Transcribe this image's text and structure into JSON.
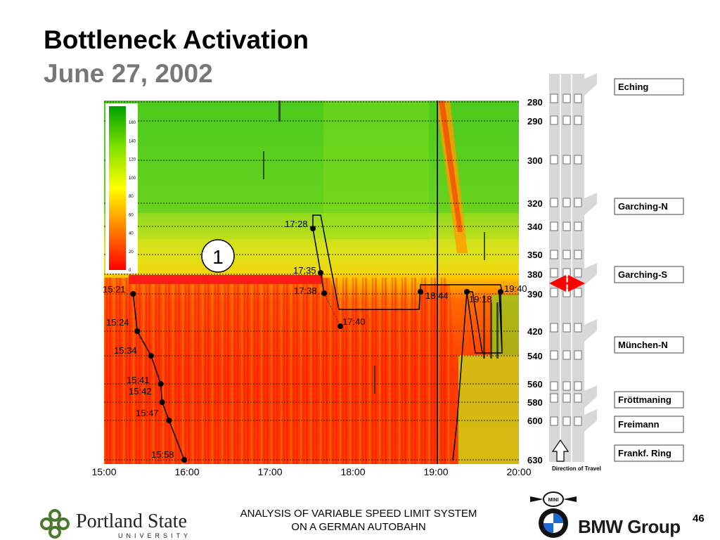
{
  "title": "Bottleneck Activation",
  "subtitle": "June 27, 2002",
  "footer": {
    "line1": "ANALYSIS OF VARIABLE SPEED LIMIT SYSTEM",
    "line2": "ON A GERMAN AUTOBAHN",
    "page_number": "46",
    "psu_name": "Portland State",
    "psu_sub": "UNIVERSITY",
    "bmw_group": "BMW Group",
    "mini_label": "MINI"
  },
  "chart_data": {
    "type": "heatmap",
    "x_ticks": [
      "15:00",
      "16:00",
      "17:00",
      "18:00",
      "19:00",
      "20:00"
    ],
    "xlim": [
      "15:00",
      "20:00"
    ],
    "y_labels": [
      "280",
      "290",
      "300",
      "320",
      "340",
      "350",
      "380",
      "390",
      "420",
      "540",
      "560",
      "580",
      "600",
      "630"
    ],
    "colorbar": {
      "ticks": [
        0,
        20,
        40,
        60,
        80,
        100,
        120,
        140,
        160
      ],
      "colors_low_to_high": [
        "#ff0000",
        "#ff8c00",
        "#ffff00",
        "#00b400"
      ]
    },
    "bottleneck_marker": "1",
    "queue_front_points": [
      {
        "time": "15:21",
        "y": "390"
      },
      {
        "time": "15:24",
        "y": "420"
      },
      {
        "time": "15:34",
        "y": "540"
      },
      {
        "time": "15:41",
        "y": "560"
      },
      {
        "time": "15:42",
        "y": "580"
      },
      {
        "time": "15:47",
        "y": "600"
      },
      {
        "time": "15:58",
        "y": "630"
      }
    ],
    "event_labels": [
      {
        "label": "17:28",
        "y": "340"
      },
      {
        "label": "17:35",
        "y": "380"
      },
      {
        "label": "17:38",
        "y": "390"
      },
      {
        "label": "17:40",
        "y": "420"
      },
      {
        "label": "18:44",
        "y": "390"
      },
      {
        "label": "19:18",
        "y": "390"
      },
      {
        "label": "19:40",
        "y": "390"
      }
    ],
    "junctions": [
      "Eching",
      "Garching-N",
      "Garching-S",
      "München-N",
      "Fröttmaning",
      "Freimann",
      "Frankf. Ring"
    ],
    "direction_label": "Direction of Travel",
    "colors": {
      "line": "#000000",
      "bottleneck_bar": "#ff1a1a",
      "arrow": "#ff0000"
    }
  }
}
